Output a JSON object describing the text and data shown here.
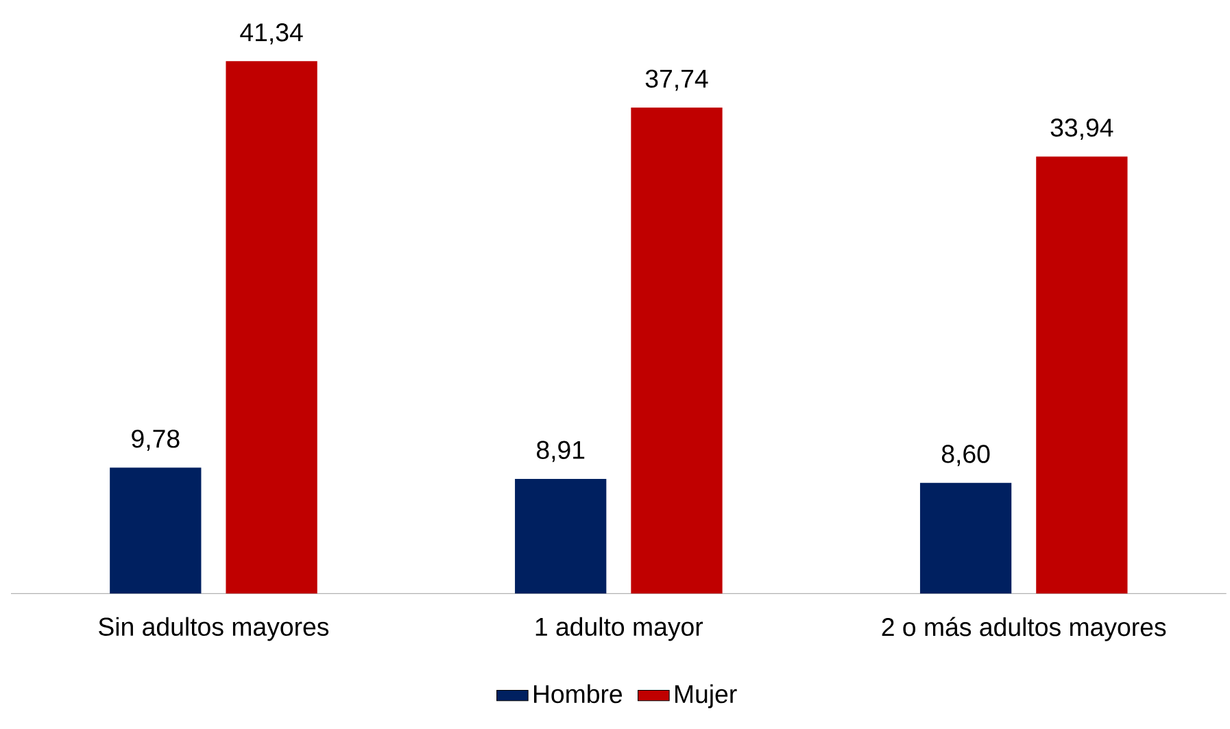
{
  "chart_data": {
    "type": "bar",
    "categories": [
      "Sin adultos mayores",
      "1 adulto mayor",
      "2 o más adultos mayores"
    ],
    "series": [
      {
        "name": "Hombre",
        "color": "#002060",
        "values": [
          9.78,
          8.91,
          8.6
        ],
        "value_labels": [
          "9,78",
          "8,91",
          "8,60"
        ]
      },
      {
        "name": "Mujer",
        "color": "#c00000",
        "values": [
          41.34,
          37.74,
          33.94
        ],
        "value_labels": [
          "41,34",
          "37,74",
          "33,94"
        ]
      }
    ],
    "legend": "bottom"
  }
}
